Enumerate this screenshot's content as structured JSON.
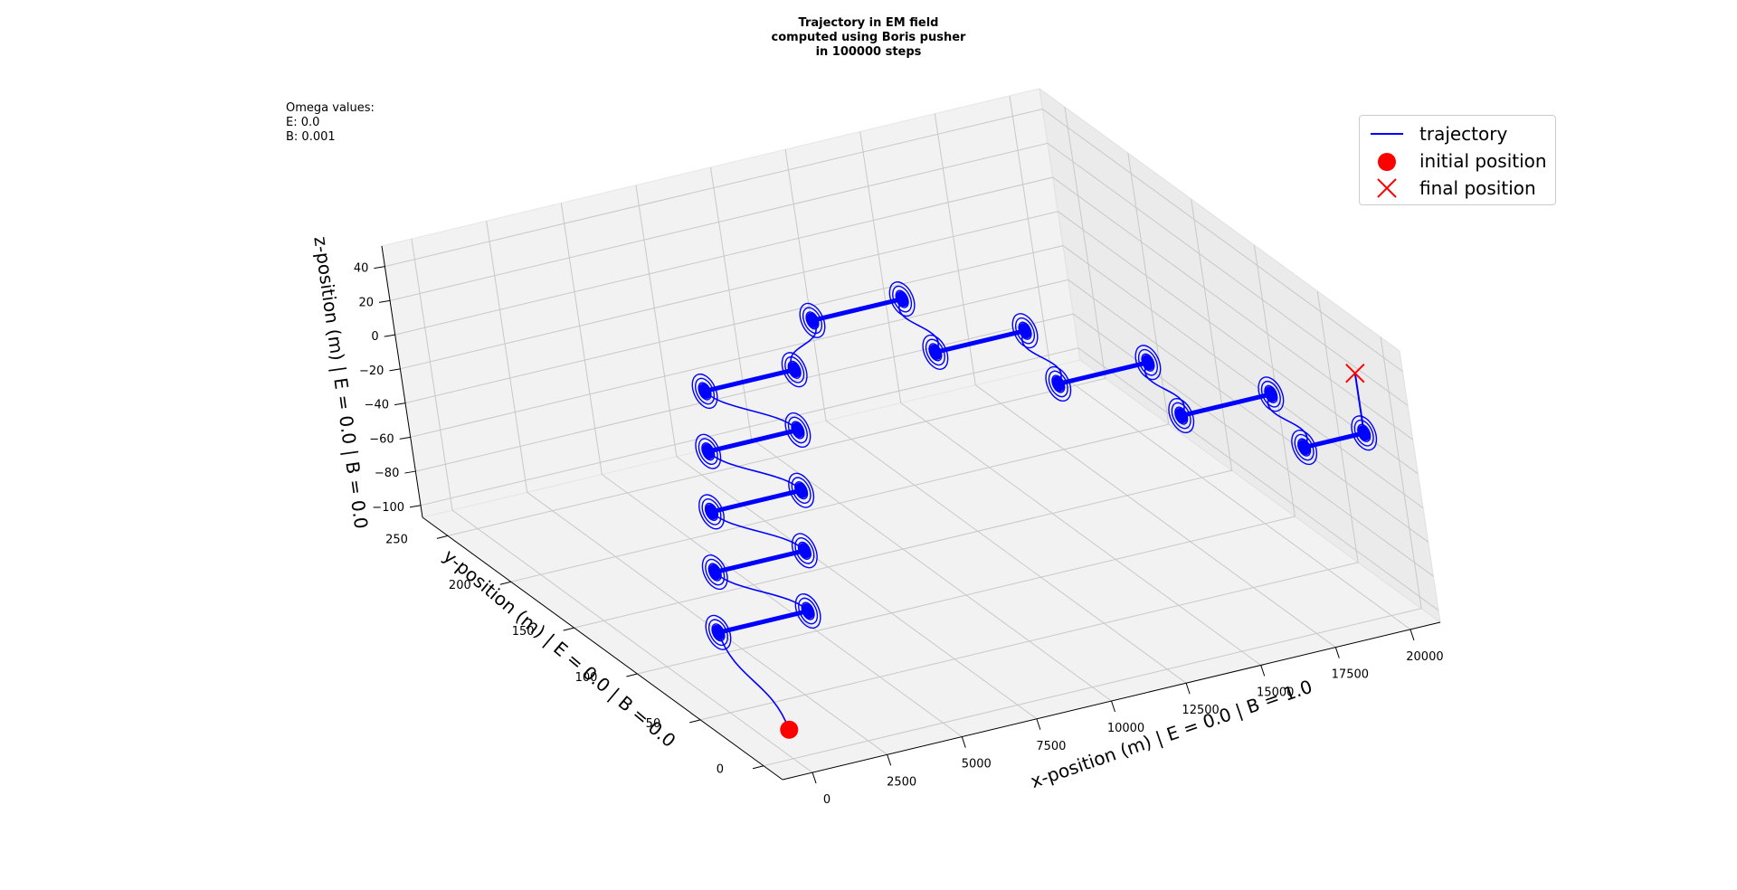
{
  "figure": {
    "title_lines": [
      "Trajectory in EM field",
      "computed using Boris pusher",
      "in 100000 steps"
    ],
    "omega": {
      "heading": "Omega values:",
      "e_line": "E: 0.0",
      "b_line": "B: 0.001"
    }
  },
  "chart_data": {
    "type": "line3d",
    "title": "Trajectory in EM field\ncomputed using Boris pusher\nin 100000 steps",
    "xlabel": "x-position (m) | E = 0.0 | B = 1.0",
    "ylabel": "y-position (m) | E = 0.0 | B = 0.0",
    "zlabel": "z-position (m) | E = 0.0 | B = 0.0",
    "x_ticks": [
      "0",
      "2500",
      "5000",
      "7500",
      "10000",
      "12500",
      "15000",
      "17500",
      "20000"
    ],
    "y_ticks": [
      "0",
      "50",
      "100",
      "150",
      "200",
      "250"
    ],
    "z_ticks": [
      "−100",
      "−80",
      "−60",
      "−40",
      "−20",
      "0",
      "20",
      "40"
    ],
    "xlim": [
      -1000,
      21000
    ],
    "ylim": [
      -15,
      270
    ],
    "zlim": [
      -107,
      52
    ],
    "grid": true,
    "legend_position": "top-right",
    "legend": [
      {
        "label": "trajectory",
        "marker": "line",
        "color": "#0000ff"
      },
      {
        "label": "initial position",
        "marker": "circle",
        "color": "#ff0000"
      },
      {
        "label": "final position",
        "marker": "x",
        "color": "#ff0000"
      }
    ],
    "series": [
      {
        "name": "trajectory",
        "color": "#0000ff",
        "plateaus": [
          {
            "x_start": 0,
            "x_end": 3000,
            "y": 50,
            "z": -60
          },
          {
            "x_start": 2000,
            "x_end": 5000,
            "y": 100,
            "z": -60
          },
          {
            "x_start": 4000,
            "x_end": 7000,
            "y": 150,
            "z": -60
          },
          {
            "x_start": 6000,
            "x_end": 9000,
            "y": 200,
            "z": -60
          },
          {
            "x_start": 8000,
            "x_end": 11000,
            "y": 250,
            "z": -60
          },
          {
            "x_start": 10000,
            "x_end": 13000,
            "y": 200,
            "z": 0
          },
          {
            "x_start": 12000,
            "x_end": 15000,
            "y": 150,
            "z": 0
          },
          {
            "x_start": 14000,
            "x_end": 17000,
            "y": 100,
            "z": 0
          },
          {
            "x_start": 16000,
            "x_end": 19000,
            "y": 50,
            "z": 0
          },
          {
            "x_start": 18000,
            "x_end": 20000,
            "y": 0,
            "z": 0
          }
        ]
      }
    ],
    "initial_position": {
      "x": 0,
      "y": 0,
      "z": -90
    },
    "final_position": {
      "x": 20000,
      "y": 0,
      "z": 35
    }
  }
}
